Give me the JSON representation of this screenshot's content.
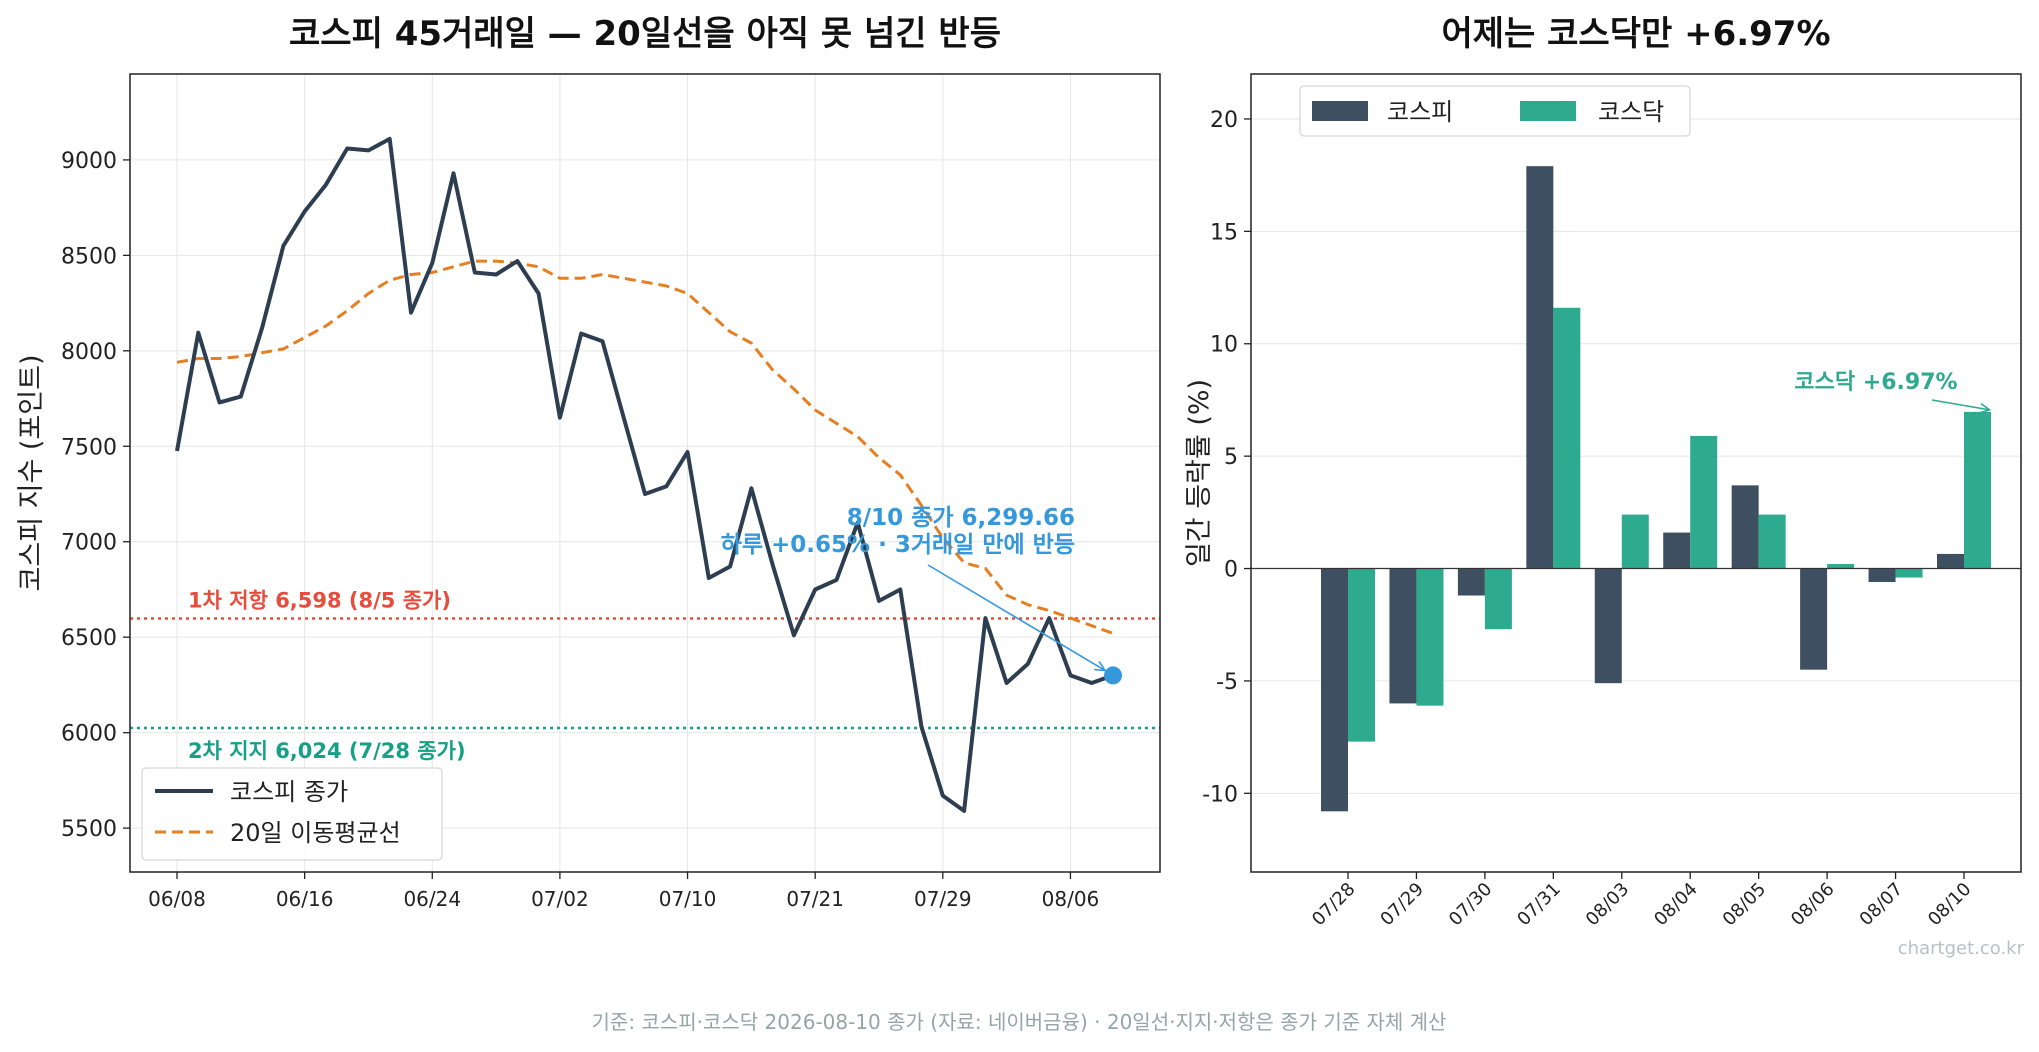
{
  "footnote": "기준: 코스피·코스닥 2026-08-10 종가 (자료: 네이버금융) · 20일선·지지·저항은 종가 기준 자체 계산",
  "watermark": "chartget.co.kr",
  "colors": {
    "kospi_line": "#2c3e50",
    "ma_line": "#e67e22",
    "resistance": "#e74c3c",
    "support": "#16a085",
    "callout": "#3498db",
    "kospi_bar": "#3d4f60",
    "kosdaq_bar": "#2eab8f"
  },
  "chart_data": [
    {
      "type": "line",
      "title": "코스피 45거래일 — 20일선을 아직 못 넘긴 반등",
      "xlabel": "",
      "ylabel": "코스피 지수 (포인트)",
      "ylim": [
        5270,
        9450
      ],
      "yticks": [
        5500,
        6000,
        6500,
        7000,
        7500,
        8000,
        8500,
        9000
      ],
      "grid": true,
      "legend_position": "lower-left",
      "xtick_labels": [
        {
          "index": 0,
          "label": "06/08"
        },
        {
          "index": 6,
          "label": "06/16"
        },
        {
          "index": 12,
          "label": "06/24"
        },
        {
          "index": 18,
          "label": "07/02"
        },
        {
          "index": 24,
          "label": "07/10"
        },
        {
          "index": 30,
          "label": "07/21"
        },
        {
          "index": 36,
          "label": "07/29"
        },
        {
          "index": 42,
          "label": "08/06"
        }
      ],
      "series": [
        {
          "name": "코스피 종가",
          "style": "solid",
          "values": [
            7475,
            8095,
            7730,
            7760,
            8120,
            8550,
            8730,
            8870,
            9060,
            9050,
            9110,
            8200,
            8460,
            8930,
            8410,
            8400,
            8470,
            8300,
            7650,
            8090,
            8050,
            7650,
            7250,
            7290,
            7470,
            6810,
            6870,
            7280,
            6880,
            6510,
            6750,
            6800,
            7100,
            6690,
            6750,
            6030,
            5670,
            5590,
            6600,
            6260,
            6360,
            6600,
            6300,
            6260,
            6300
          ]
        },
        {
          "name": "20일 이동평균선",
          "style": "dashed",
          "values": [
            7940,
            7960,
            7960,
            7970,
            7990,
            8010,
            8070,
            8130,
            8210,
            8300,
            8370,
            8400,
            8410,
            8440,
            8470,
            8470,
            8460,
            8440,
            8380,
            8380,
            8400,
            8380,
            8360,
            8340,
            8300,
            8200,
            8100,
            8040,
            7900,
            7800,
            7690,
            7620,
            7550,
            7440,
            7350,
            7190,
            7020,
            6890,
            6860,
            6720,
            6670,
            6640,
            6600,
            6560,
            6520
          ]
        }
      ],
      "reference_lines": [
        {
          "value": 6598,
          "label": "1차 저항 6,598 (8/5 종가)",
          "style": "dotted"
        },
        {
          "value": 6024,
          "label": "2차 지지 6,024 (7/28 종가)",
          "style": "dotted"
        }
      ],
      "annotation": {
        "lines": [
          "8/10 종가 6,299.66",
          "하루 +0.65% · 3거래일 만에 반등"
        ],
        "point_index": 44,
        "point_value": 6299.66
      }
    },
    {
      "type": "bar",
      "title": "어제는 코스닥만 +6.97%",
      "xlabel": "",
      "ylabel": "일간 등락률 (%)",
      "ylim": [
        -13.5,
        22
      ],
      "yticks": [
        -10,
        -5,
        0,
        5,
        10,
        15,
        20
      ],
      "grid": true,
      "legend_position": "top-left",
      "categories": [
        "07/28",
        "07/29",
        "07/30",
        "07/31",
        "08/03",
        "08/04",
        "08/05",
        "08/06",
        "08/07",
        "08/10"
      ],
      "series": [
        {
          "name": "코스피",
          "values": [
            -10.8,
            -6.0,
            -1.2,
            17.9,
            -5.1,
            1.6,
            3.7,
            -4.5,
            -0.6,
            0.65
          ]
        },
        {
          "name": "코스닥",
          "values": [
            -7.7,
            -6.1,
            -2.7,
            11.6,
            2.4,
            5.9,
            2.4,
            0.2,
            -0.4,
            6.97
          ]
        }
      ],
      "annotation": {
        "text": "코스닥 +6.97%",
        "category": "08/10",
        "series": "코스닥",
        "value": 6.97
      }
    }
  ]
}
